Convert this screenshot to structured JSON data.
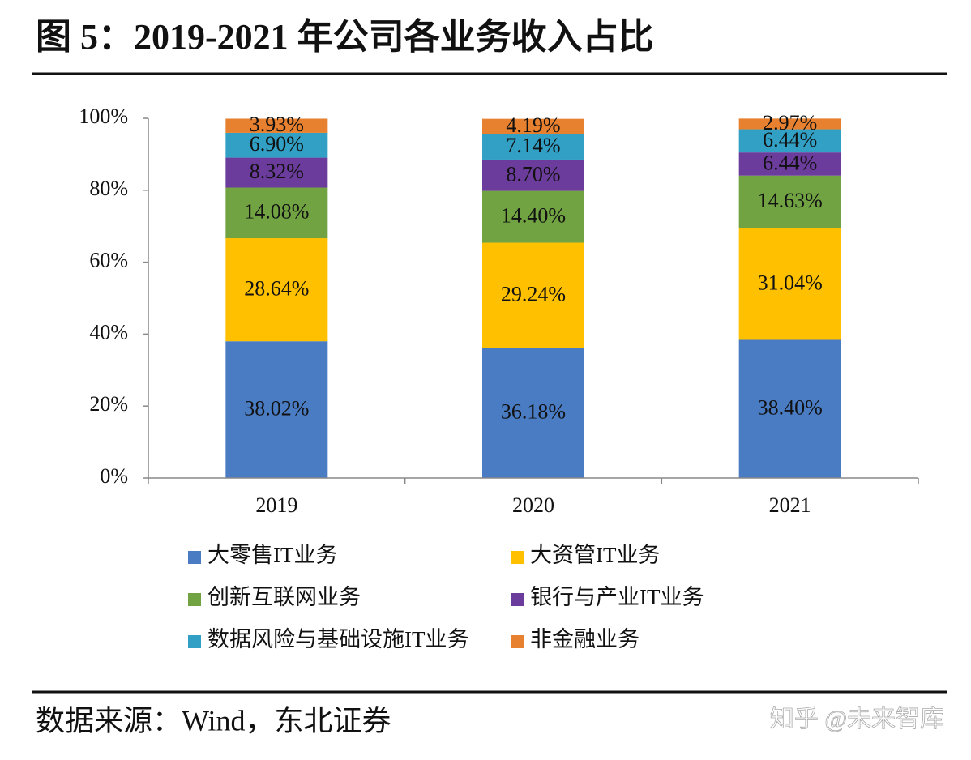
{
  "chart_data": {
    "type": "stacked_bar",
    "title": "图 5：2019-2021 年公司各业务收入占比",
    "source": "数据来源：Wind，东北证券",
    "watermark": "知乎 @未来智库",
    "categories": [
      "2019",
      "2020",
      "2021"
    ],
    "ylim": [
      0,
      100
    ],
    "yticks": [
      {
        "value": 0,
        "label": "0%"
      },
      {
        "value": 20,
        "label": "20%"
      },
      {
        "value": 40,
        "label": "40%"
      },
      {
        "value": 60,
        "label": "60%"
      },
      {
        "value": 80,
        "label": "80%"
      },
      {
        "value": 100,
        "label": "100%"
      }
    ],
    "series": [
      {
        "name": "大零售IT业务",
        "color": "#4a7cc4",
        "values": [
          38.02,
          36.18,
          38.4
        ],
        "value_labels": [
          "38.02%",
          "36.18%",
          "38.40%"
        ]
      },
      {
        "name": "大资管IT业务",
        "color": "#ffc000",
        "values": [
          28.64,
          29.24,
          31.04
        ],
        "value_labels": [
          "28.64%",
          "29.24%",
          "31.04%"
        ]
      },
      {
        "name": "创新互联网业务",
        "color": "#71a343",
        "values": [
          14.08,
          14.4,
          14.63
        ],
        "value_labels": [
          "14.08%",
          "14.40%",
          "14.63%"
        ]
      },
      {
        "name": "银行与产业IT业务",
        "color": "#6b3c9c",
        "values": [
          8.32,
          8.7,
          6.44
        ],
        "value_labels": [
          "8.32%",
          "8.70%",
          "6.44%"
        ]
      },
      {
        "name": "数据风险与基础设施IT业务",
        "color": "#32a0c4",
        "values": [
          6.9,
          7.14,
          6.44
        ],
        "value_labels": [
          "6.90%",
          "7.14%",
          "6.44%"
        ]
      },
      {
        "name": "非金融业务",
        "color": "#e8812f",
        "values": [
          3.93,
          4.19,
          2.97
        ],
        "value_labels": [
          "3.93%",
          "4.19%",
          "2.97%"
        ]
      }
    ]
  }
}
